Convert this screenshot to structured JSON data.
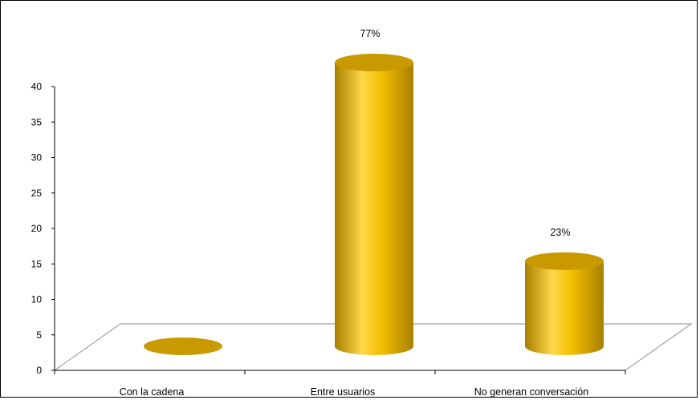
{
  "chart_data": {
    "type": "bar",
    "bar_shape": "cylinder-3d",
    "categories": [
      "Con la cadena",
      "Entre usuarios",
      "No generan conversación"
    ],
    "values": [
      0,
      40,
      12
    ],
    "data_labels": [
      "",
      "77%",
      "23%"
    ],
    "title": "",
    "xlabel": "",
    "ylabel": "",
    "ylim": [
      0,
      40
    ],
    "yticks": [
      0,
      5,
      10,
      15,
      20,
      25,
      30,
      35,
      40
    ],
    "grid": false,
    "legend": "none",
    "colors": {
      "bar_light": "#FFD84A",
      "bar_mid": "#F2BE00",
      "bar_dark": "#A87F00",
      "bar_top": "#C99A00",
      "floor_line": "#8C8C8C",
      "axis": "#000000"
    }
  }
}
